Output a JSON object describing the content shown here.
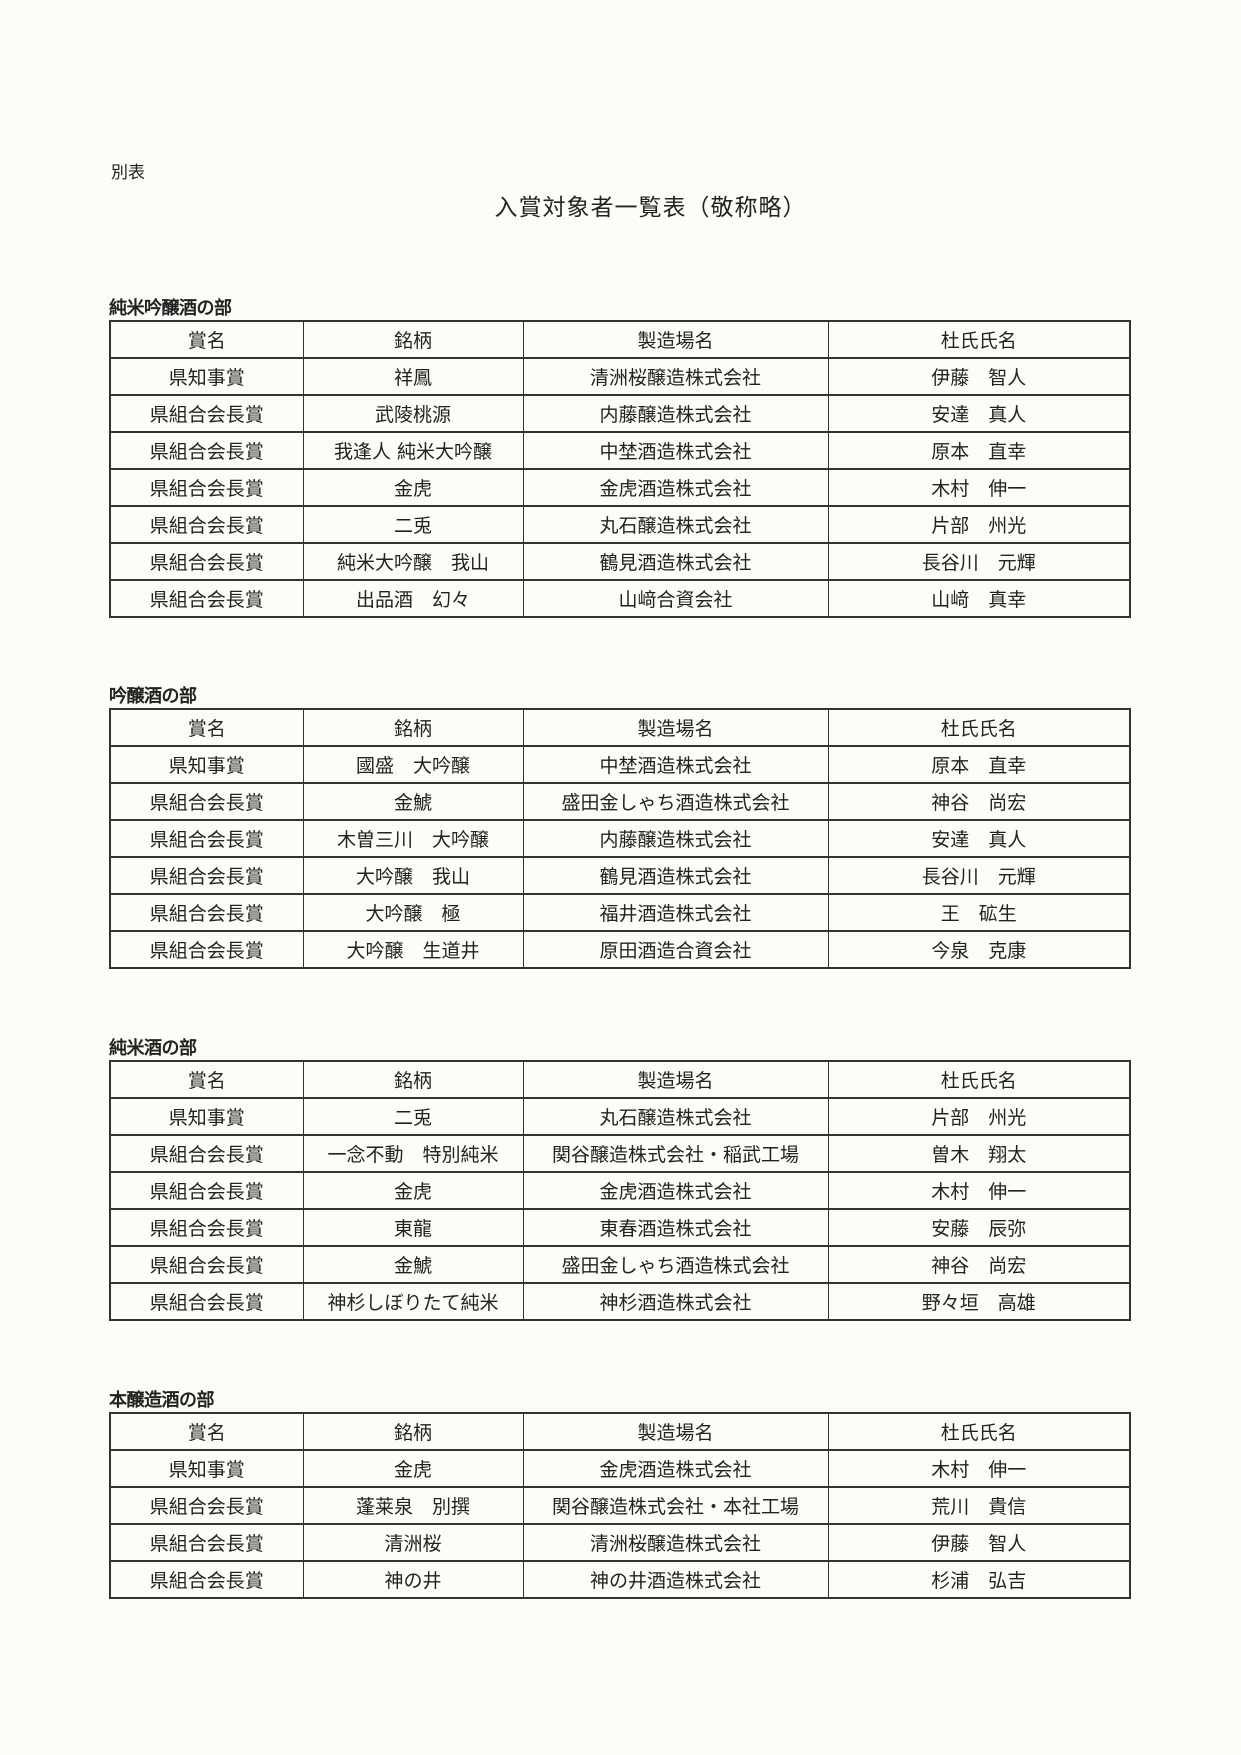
{
  "note": "別表",
  "title": "入賞対象者一覧表（敬称略）",
  "headers": [
    "賞名",
    "銘柄",
    "製造場名",
    "杜氏氏名"
  ],
  "sections": [
    {
      "heading": "純米吟醸酒の部",
      "rows": [
        [
          "県知事賞",
          "祥鳳",
          "清洲桜醸造株式会社",
          "伊藤　智人"
        ],
        [
          "県組合会長賞",
          "武陵桃源",
          "内藤醸造株式会社",
          "安達　真人"
        ],
        [
          "県組合会長賞",
          "我逢人 純米大吟醸",
          "中埜酒造株式会社",
          "原本　直幸"
        ],
        [
          "県組合会長賞",
          "金虎",
          "金虎酒造株式会社",
          "木村　伸一"
        ],
        [
          "県組合会長賞",
          "二兎",
          "丸石醸造株式会社",
          "片部　州光"
        ],
        [
          "県組合会長賞",
          "純米大吟醸　我山",
          "鶴見酒造株式会社",
          "長谷川　元輝"
        ],
        [
          "県組合会長賞",
          "出品酒　幻々",
          "山﨑合資会社",
          "山﨑　真幸"
        ]
      ]
    },
    {
      "heading": "吟醸酒の部",
      "rows": [
        [
          "県知事賞",
          "國盛　大吟醸",
          "中埜酒造株式会社",
          "原本　直幸"
        ],
        [
          "県組合会長賞",
          "金鯱",
          "盛田金しゃち酒造株式会社",
          "神谷　尚宏"
        ],
        [
          "県組合会長賞",
          "木曽三川　大吟醸",
          "内藤醸造株式会社",
          "安達　真人"
        ],
        [
          "県組合会長賞",
          "大吟醸　我山",
          "鶴見酒造株式会社",
          "長谷川　元輝"
        ],
        [
          "県組合会長賞",
          "大吟醸　極",
          "福井酒造株式会社",
          "王　砿生"
        ],
        [
          "県組合会長賞",
          "大吟醸　生道井",
          "原田酒造合資会社",
          "今泉　克康"
        ]
      ]
    },
    {
      "heading": "純米酒の部",
      "rows": [
        [
          "県知事賞",
          "二兎",
          "丸石醸造株式会社",
          "片部　州光"
        ],
        [
          "県組合会長賞",
          "一念不動　特別純米",
          "関谷醸造株式会社・稲武工場",
          "曽木　翔太"
        ],
        [
          "県組合会長賞",
          "金虎",
          "金虎酒造株式会社",
          "木村　伸一"
        ],
        [
          "県組合会長賞",
          "東龍",
          "東春酒造株式会社",
          "安藤　辰弥"
        ],
        [
          "県組合会長賞",
          "金鯱",
          "盛田金しゃち酒造株式会社",
          "神谷　尚宏"
        ],
        [
          "県組合会長賞",
          "神杉しぼりたて純米",
          "神杉酒造株式会社",
          "野々垣　高雄"
        ]
      ]
    },
    {
      "heading": "本醸造酒の部",
      "rows": [
        [
          "県知事賞",
          "金虎",
          "金虎酒造株式会社",
          "木村　伸一"
        ],
        [
          "県組合会長賞",
          "蓬莱泉　別撰",
          "関谷醸造株式会社・本社工場",
          "荒川　貴信"
        ],
        [
          "県組合会長賞",
          "清洲桜",
          "清洲桜醸造株式会社",
          "伊藤　智人"
        ],
        [
          "県組合会長賞",
          "神の井",
          "神の井酒造株式会社",
          "杉浦　弘吉"
        ]
      ]
    }
  ]
}
